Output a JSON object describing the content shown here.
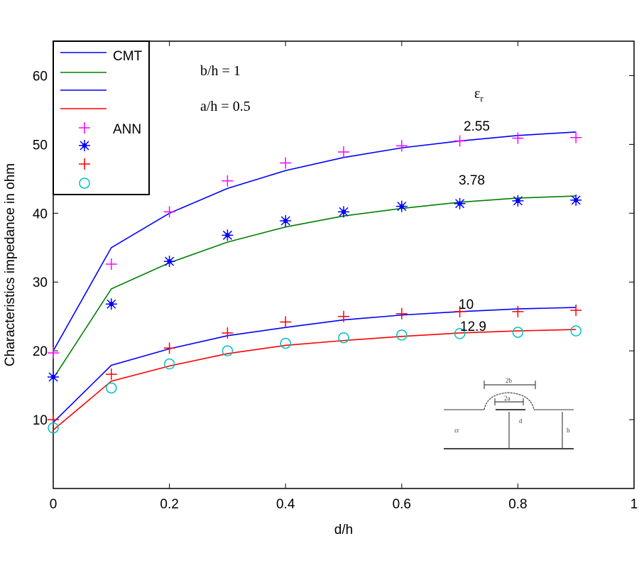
{
  "chart_data": {
    "type": "line",
    "title": "",
    "xlabel": "d/h",
    "ylabel": "Characteristics impedance in ohm",
    "xlim": [
      0,
      1
    ],
    "ylim": [
      0,
      65
    ],
    "xticks": [
      "0",
      "0.2",
      "0.4",
      "0.6",
      "0.8",
      "1"
    ],
    "yticks": [
      "10",
      "20",
      "30",
      "40",
      "50",
      "60"
    ],
    "grid": false,
    "legend_position": "top-left",
    "legend": [
      "CMT",
      "ANN"
    ],
    "annotations": {
      "bh": "b/h = 1",
      "ah": "a/h = 0.5",
      "er_header": "ε",
      "er_sub": "r"
    },
    "x": [
      0,
      0.1,
      0.2,
      0.3,
      0.4,
      0.5,
      0.6,
      0.7,
      0.8,
      0.9
    ],
    "series": [
      {
        "label": "2.55",
        "method": "CMT",
        "color": "#0000ff",
        "style": "line",
        "values": [
          20,
          35,
          40,
          43.6,
          46.2,
          48.1,
          49.5,
          50.5,
          51.3,
          51.8
        ]
      },
      {
        "label": "3.78",
        "method": "CMT",
        "color": "#008000",
        "style": "line",
        "values": [
          16,
          29,
          32.8,
          35.8,
          38,
          39.6,
          40.7,
          41.6,
          42.2,
          42.5
        ]
      },
      {
        "label": "10",
        "method": "CMT",
        "color": "#0000ff",
        "style": "line",
        "values": [
          9.6,
          17.9,
          20.3,
          22.2,
          23.4,
          24.5,
          25.2,
          25.7,
          26.1,
          26.3
        ]
      },
      {
        "label": "12.9",
        "method": "CMT",
        "color": "#ff0000",
        "style": "line",
        "values": [
          8.5,
          15.6,
          17.8,
          19.6,
          20.8,
          21.5,
          22.1,
          22.6,
          22.9,
          23.1
        ]
      },
      {
        "label": "2.55",
        "method": "ANN",
        "color": "#ff00ff",
        "style": "plus",
        "values": [
          19.7,
          32.6,
          40.2,
          44.7,
          47.3,
          48.9,
          49.8,
          50.5,
          50.9,
          51
        ]
      },
      {
        "label": "3.78",
        "method": "ANN",
        "color": "#0000ff",
        "style": "star",
        "values": [
          16.2,
          26.8,
          33,
          36.8,
          38.9,
          40.2,
          41,
          41.4,
          41.8,
          41.9
        ]
      },
      {
        "label": "10",
        "method": "ANN",
        "color": "#ff0000",
        "style": "plus",
        "values": [
          10,
          16.6,
          20.4,
          22.6,
          24.2,
          25,
          25.4,
          25.7,
          25.7,
          25.9
        ]
      },
      {
        "label": "12.9",
        "method": "ANN",
        "color": "#00c0c0",
        "style": "circle",
        "values": [
          8.8,
          14.6,
          18.1,
          20,
          21.1,
          21.9,
          22.3,
          22.5,
          22.7,
          22.9
        ]
      }
    ],
    "inset": {
      "labels": [
        "2b",
        "2a",
        "d",
        "h",
        "εr"
      ]
    }
  }
}
